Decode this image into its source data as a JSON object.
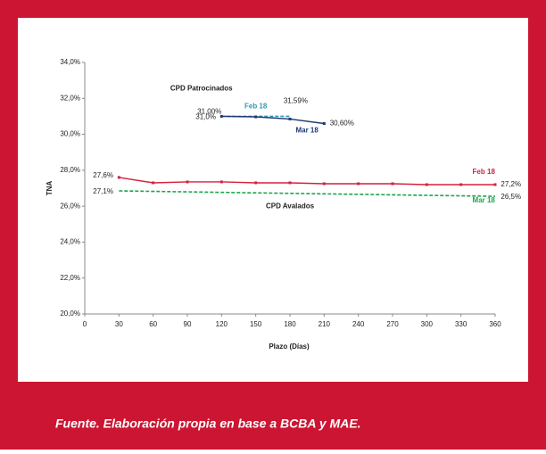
{
  "chart_data": {
    "type": "line",
    "x_label": "Plazo (Días)",
    "y_label": "TNA",
    "xlim": [
      0,
      360
    ],
    "xticks": [
      0,
      30,
      60,
      90,
      120,
      150,
      180,
      210,
      240,
      270,
      300,
      330,
      360
    ],
    "ylim": [
      20,
      34
    ],
    "yticks": [
      {
        "value": 20,
        "label": "20,0%"
      },
      {
        "value": 22,
        "label": "22,0%"
      },
      {
        "value": 24,
        "label": "24,0%"
      },
      {
        "value": 26,
        "label": "26,0%"
      },
      {
        "value": 28,
        "label": "28,0%"
      },
      {
        "value": 30,
        "label": "30,0%"
      },
      {
        "value": 32,
        "label": "32,0%"
      },
      {
        "value": 34,
        "label": "34,0%"
      }
    ],
    "series": [
      {
        "name": "Feb 18",
        "color": "#2e9ab4",
        "dashed": true,
        "markers": false,
        "x": [
          120,
          150,
          180
        ],
        "values": [
          31.0,
          31.0,
          31.0
        ]
      },
      {
        "name": "Mar 18",
        "color": "#1f3a73",
        "dashed": false,
        "markers": true,
        "x": [
          120,
          150,
          180,
          210
        ],
        "values": [
          31.0,
          30.97,
          30.85,
          30.6
        ]
      },
      {
        "name": "Feb 18",
        "color": "#d4213d",
        "dashed": false,
        "markers": true,
        "x": [
          30,
          60,
          90,
          120,
          150,
          180,
          210,
          240,
          270,
          300,
          330,
          360
        ],
        "values": [
          27.6,
          27.3,
          27.35,
          27.35,
          27.3,
          27.3,
          27.25,
          27.25,
          27.25,
          27.2,
          27.2,
          27.2
        ]
      },
      {
        "name": "Mar 18",
        "color": "#1aa64a",
        "dashed": true,
        "markers": false,
        "x": [
          30,
          360
        ],
        "values": [
          26.85,
          26.55
        ]
      }
    ],
    "annotations": [
      "CPD Patrocinados",
      "CPD Avalados",
      "31,00%",
      "31,0%",
      "31,59%",
      "30,60%",
      "27,6%",
      "27,1%",
      "27,2%",
      "26,5%"
    ],
    "footer": "Fuente. Elaboración propia en base a BCBA y MAE."
  }
}
